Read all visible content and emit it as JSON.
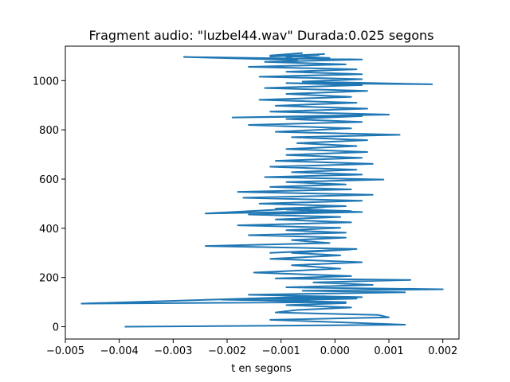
{
  "chart_data": {
    "type": "line",
    "title": "Fragment audio: \"luzbel44.wav\" Durada:0.025 segons",
    "xlabel": "t en segons",
    "ylabel": "",
    "xlim": [
      -0.005,
      0.0023
    ],
    "ylim": [
      -50,
      1140
    ],
    "xticks": [
      -0.005,
      -0.004,
      -0.003,
      -0.002,
      -0.001,
      0.0,
      0.001,
      0.002
    ],
    "xtick_labels": [
      "−0.005",
      "−0.004",
      "−0.003",
      "−0.002",
      "−0.001",
      "0.000",
      "0.001",
      "0.002"
    ],
    "yticks": [
      0,
      200,
      400,
      600,
      800,
      1000
    ],
    "ytick_labels": [
      "0",
      "200",
      "400",
      "600",
      "800",
      "1000"
    ],
    "grid": false,
    "legend": "none",
    "series": [
      {
        "color": "#1f77b4",
        "x": [
          -0.0039,
          0.0013,
          0.0001,
          -0.0012,
          0.001,
          0.0008,
          -0.0011,
          -0.0007,
          0.0003,
          -0.0009,
          0.0002,
          -0.0013,
          0.0004,
          -0.0002,
          -0.0047,
          0.0002,
          -0.0021,
          0.0005,
          -0.0016,
          0.0013,
          -0.0006,
          0.002,
          -0.0009,
          0.0007,
          -0.0004,
          0.0014,
          -0.0011,
          0.0003,
          -0.0015,
          0.0001,
          -0.0008,
          0.0005,
          -0.0012,
          0.0001,
          -0.0008,
          0.0003,
          -0.0012,
          0.0004,
          -0.0024,
          -0.0001,
          -0.0008,
          0.0002,
          -0.0016,
          0.0002,
          -0.0009,
          0.0001,
          -0.0018,
          0.0003,
          -0.0011,
          0.0001,
          -0.0016,
          0.0005,
          -0.0009,
          -0.0002,
          -0.0024,
          0.0003,
          -0.0011,
          0.0002,
          -0.0014,
          0.0005,
          -0.0017,
          0.0007,
          -0.0018,
          0.0003,
          -0.0012,
          0.0002,
          -0.0009,
          0.0009,
          -0.0013,
          0.0005,
          -0.0008,
          0.0004,
          -0.0012,
          0.0007,
          -0.0011,
          0.0005,
          -0.0009,
          0.0006,
          -0.0009,
          0.0004,
          -0.0007,
          0.0006,
          -0.0008,
          0.0012,
          -0.0011,
          0.0003,
          -0.0016,
          0.0005,
          -0.0009,
          0.0005,
          -0.0019,
          0.001,
          -0.0012,
          0.0006,
          -0.0011,
          0.0004,
          -0.0014,
          0.0003,
          -0.0009,
          0.0006,
          -0.0013,
          0.0005,
          -0.0009,
          0.0018,
          -0.0006,
          0.0005,
          -0.0014,
          0.0005,
          -0.0009,
          0.0004,
          -0.0016,
          0.0002,
          -0.0013,
          0.0005,
          -0.0028,
          -0.0007,
          -0.0009,
          -0.0003,
          -0.0012,
          -0.0002,
          -0.0009,
          -0.0001,
          -0.0012,
          -0.0006
        ],
        "y": [
          0,
          8,
          18,
          28,
          38,
          48,
          58,
          68,
          78,
          88,
          96,
          106,
          114,
          124,
          94,
          100,
          110,
          120,
          130,
          140,
          146,
          152,
          160,
          170,
          180,
          190,
          196,
          206,
          220,
          236,
          250,
          262,
          276,
          290,
          300,
          314,
          300,
          316,
          328,
          340,
          352,
          362,
          372,
          382,
          392,
          402,
          412,
          424,
          436,
          446,
          456,
          466,
          476,
          486,
          460,
          470,
          480,
          490,
          500,
          512,
          524,
          536,
          548,
          558,
          568,
          578,
          588,
          598,
          608,
          618,
          628,
          638,
          650,
          662,
          674,
          686,
          698,
          710,
          722,
          734,
          746,
          758,
          770,
          780,
          792,
          806,
          820,
          832,
          844,
          856,
          850,
          862,
          874,
          886,
          898,
          910,
          922,
          934,
          946,
          958,
          970,
          982,
          990,
          985,
          996,
          1006,
          1016,
          1026,
          1036,
          1046,
          1056,
          1066,
          1076,
          1086,
          1096,
          1084,
          1096,
          1104,
          1098,
          1108,
          1100,
          1092,
          1102,
          1112
        ]
      }
    ]
  }
}
